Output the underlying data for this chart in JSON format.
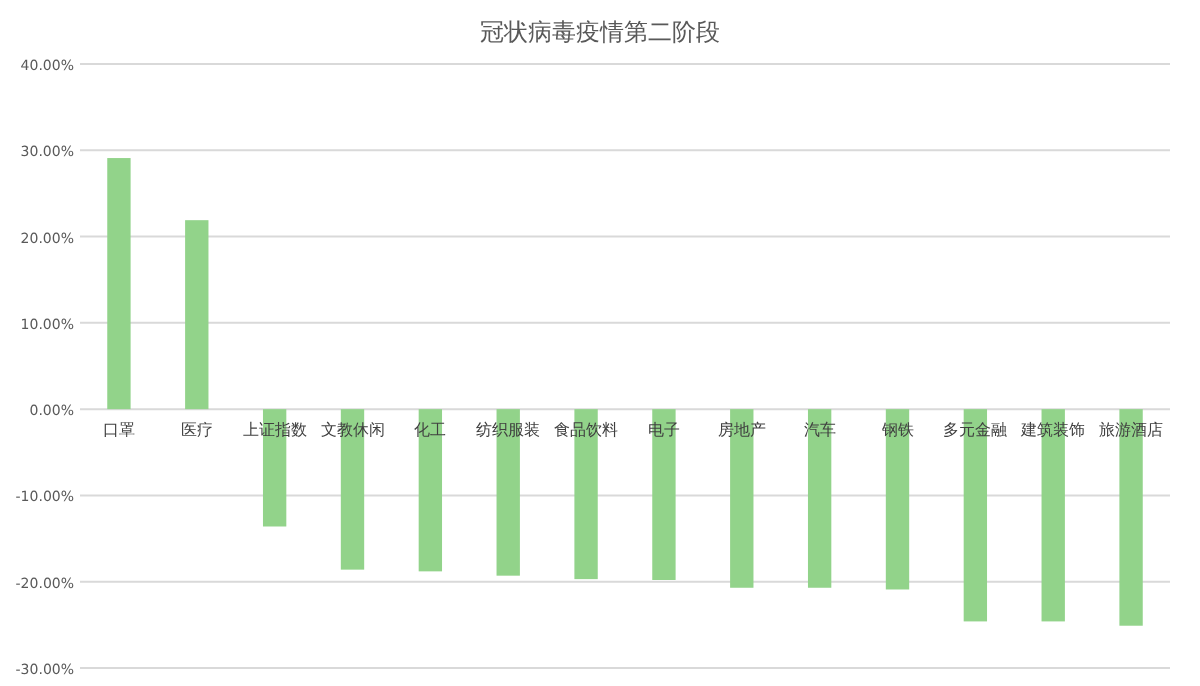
{
  "chart_data": {
    "type": "bar",
    "title": "冠状病毒疫情第二阶段",
    "categories": [
      "口罩",
      "医疗",
      "上证指数",
      "文教休闲",
      "化工",
      "纺织服装",
      "食品饮料",
      "电子",
      "房地产",
      "汽车",
      "钢铁",
      "多元金融",
      "建筑装饰",
      "旅游酒店"
    ],
    "values": [
      29.1,
      21.9,
      -13.6,
      -18.6,
      -18.8,
      -19.3,
      -19.7,
      -19.8,
      -20.7,
      -20.7,
      -20.9,
      -24.6,
      -24.6,
      -25.1
    ],
    "color": "#92d38a",
    "ylim": [
      -30,
      40
    ],
    "yticks": [
      {
        "value": -30,
        "label": "-30.00%"
      },
      {
        "value": -20,
        "label": "-20.00%"
      },
      {
        "value": -10,
        "label": "-10.00%"
      },
      {
        "value": 0,
        "label": "0.00%"
      },
      {
        "value": 10,
        "label": "10.00%"
      },
      {
        "value": 20,
        "label": "20.00%"
      },
      {
        "value": 30,
        "label": "30.00%"
      },
      {
        "value": 40,
        "label": "40.00%"
      }
    ],
    "grid": "y"
  }
}
